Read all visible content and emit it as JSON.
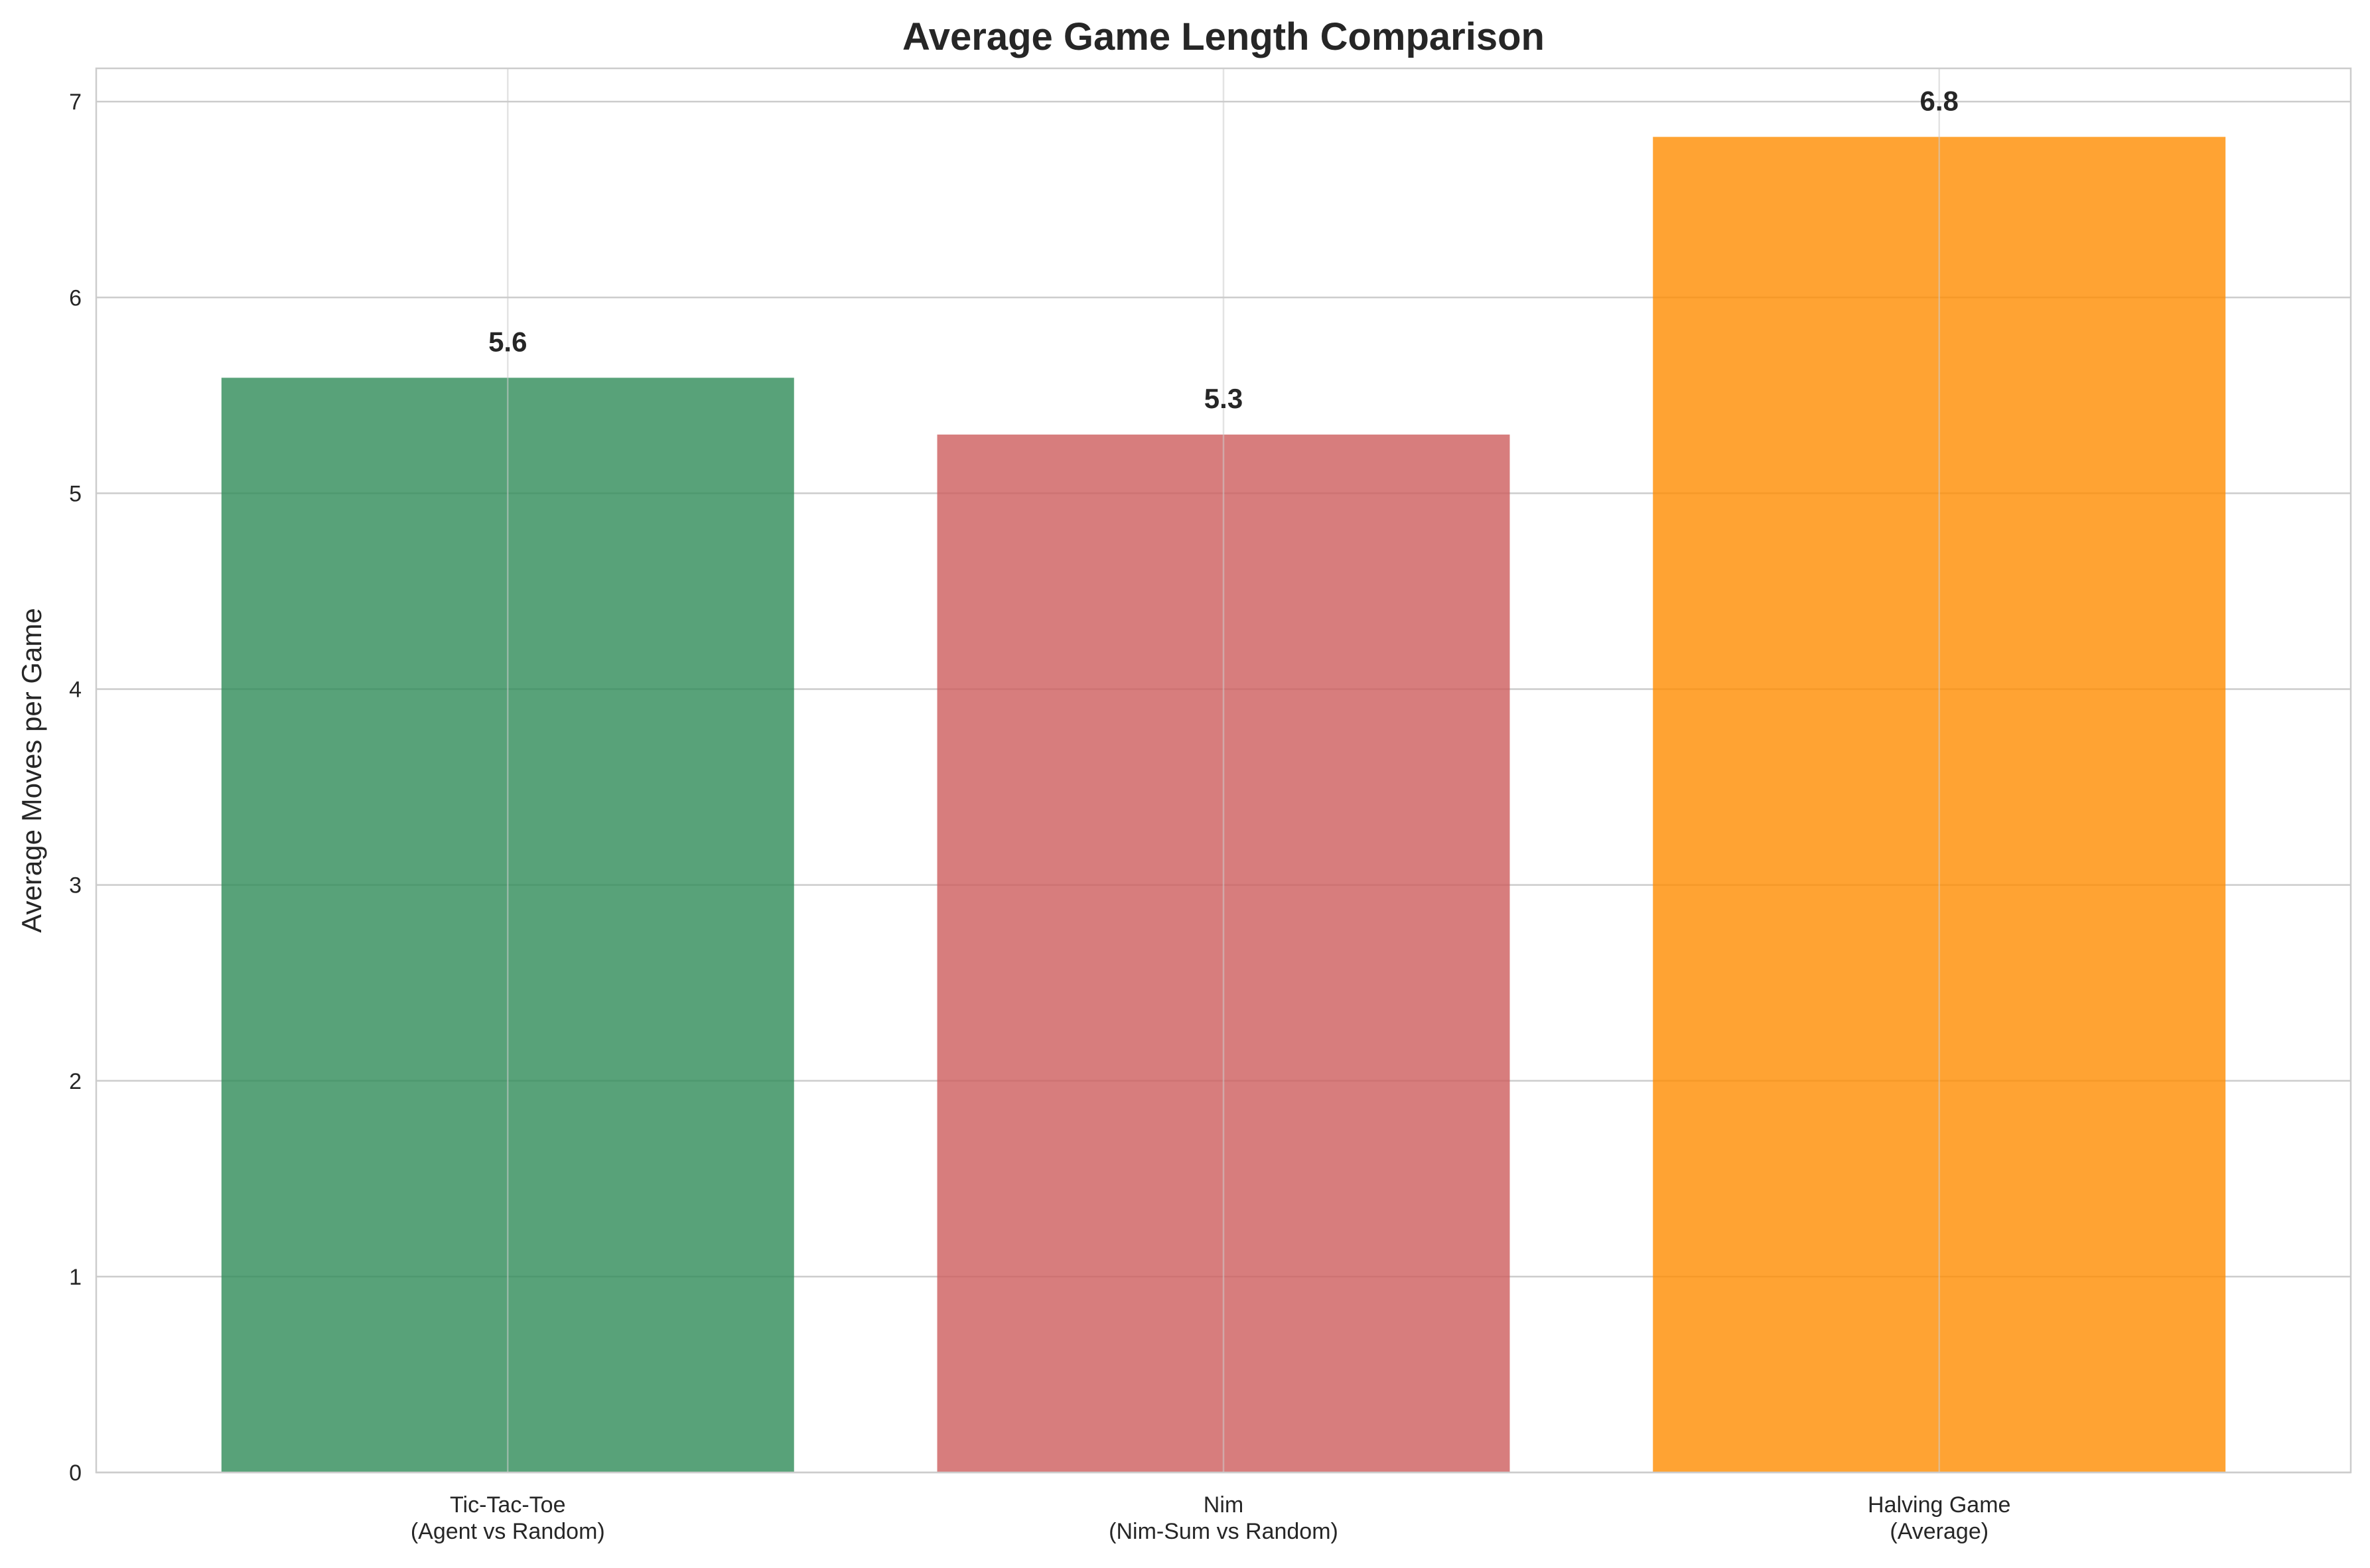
{
  "chart_data": {
    "type": "bar",
    "title": "Average Game Length Comparison",
    "xlabel": "",
    "ylabel": "Average Moves per Game",
    "ylim": [
      0,
      7.17
    ],
    "yticks": [
      0,
      1,
      2,
      3,
      4,
      5,
      6,
      7
    ],
    "grid": true,
    "categories": [
      [
        "Tic-Tac-Toe",
        "(Agent vs Random)"
      ],
      [
        "Nim",
        "(Nim-Sum vs Random)"
      ],
      [
        "Halving Game",
        "(Average)"
      ]
    ],
    "values": [
      5.59,
      5.3,
      6.82
    ],
    "data_labels": [
      "5.6",
      "5.3",
      "6.8"
    ],
    "colors": [
      "#2E8B57",
      "#CD5C5C",
      "#FF8C00"
    ],
    "bar_opacity": 0.8
  }
}
